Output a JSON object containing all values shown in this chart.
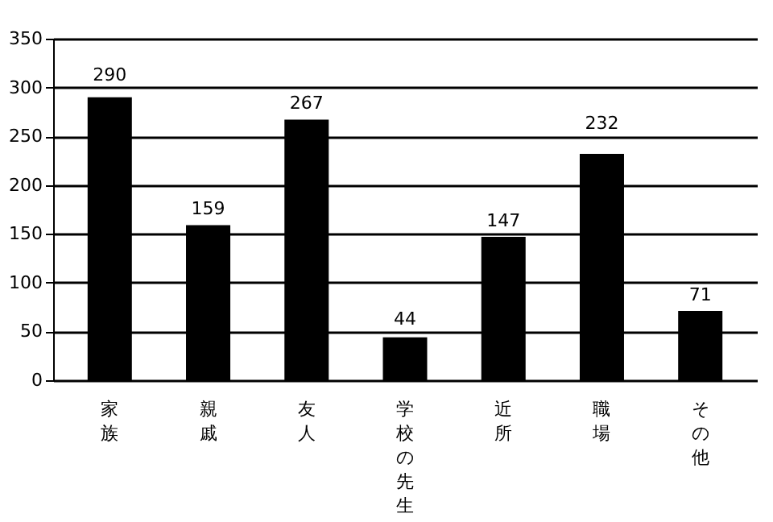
{
  "chart_data": {
    "type": "bar",
    "categories": [
      "家族",
      "親戚",
      "友人",
      "学校の先生",
      "近所",
      "職場",
      "その他"
    ],
    "values": [
      290,
      159,
      267,
      44,
      147,
      232,
      71
    ],
    "color": "#000000",
    "ylim": [
      0,
      350
    ],
    "yticks": [
      0,
      50,
      100,
      150,
      200,
      250,
      300,
      350
    ],
    "grid": "y",
    "data_labels": true
  }
}
